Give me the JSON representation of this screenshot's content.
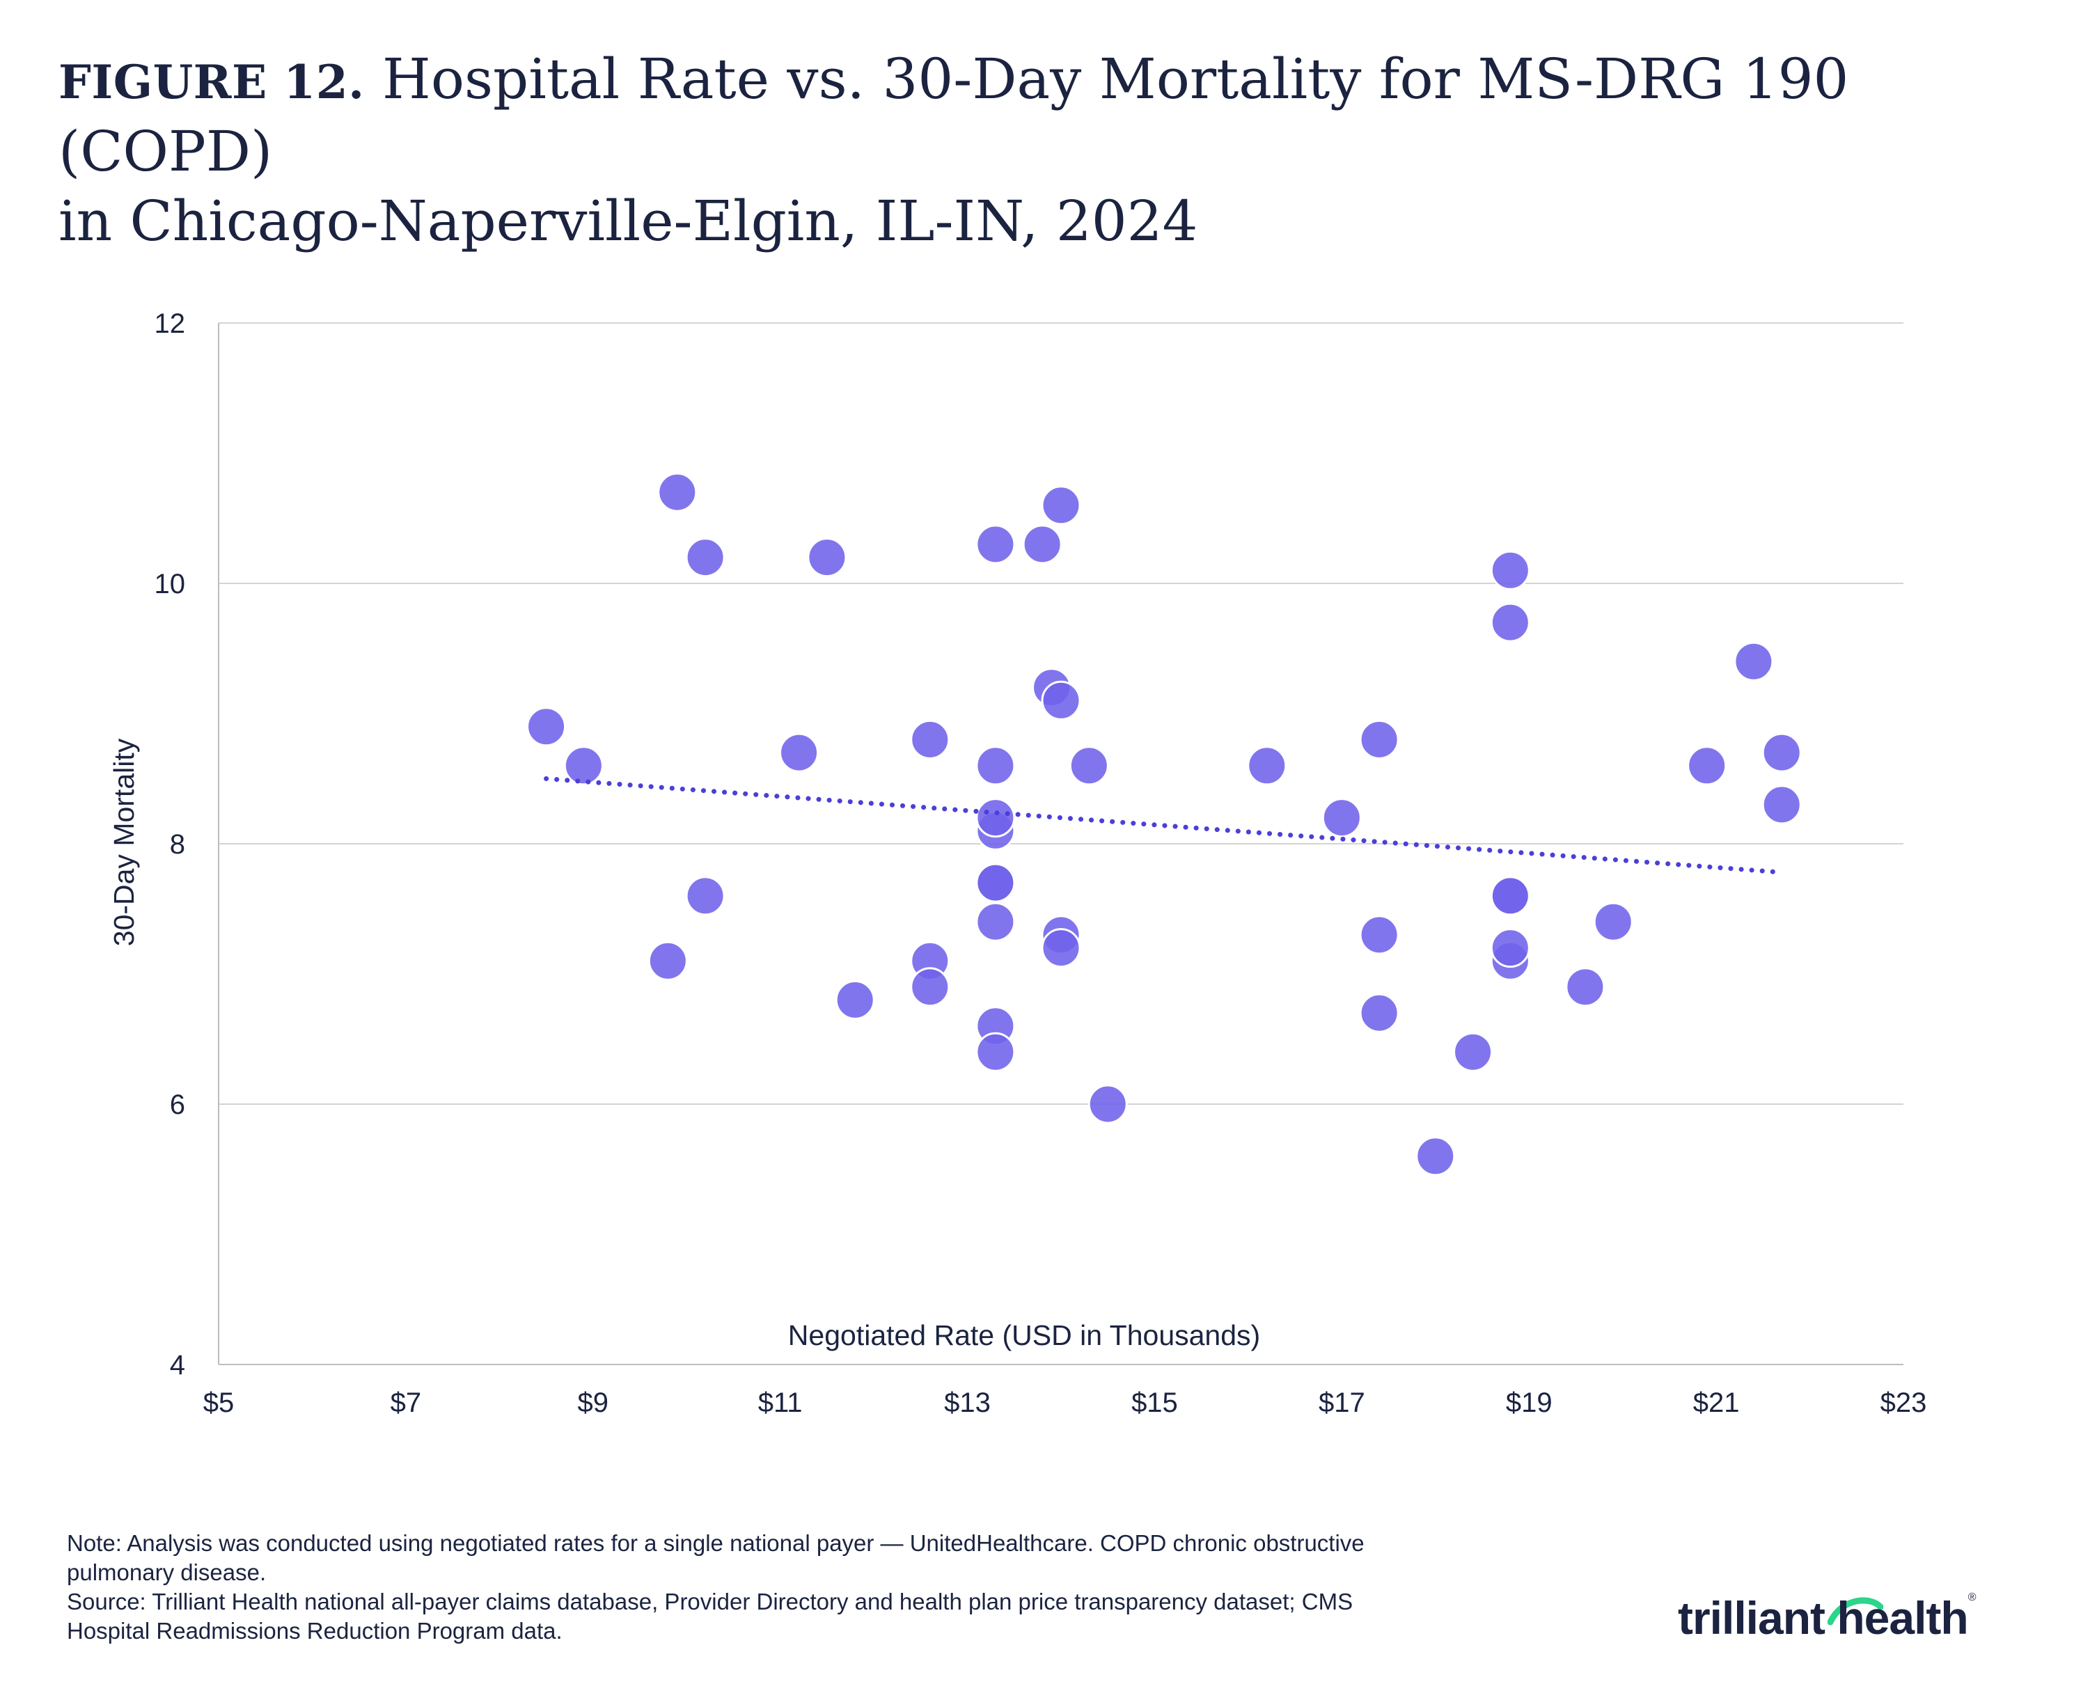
{
  "title": {
    "prefix": "FIGURE 12.",
    "line1": "Hospital Rate vs. 30-Day Mortality for MS-DRG 190 (COPD)",
    "line2": "in Chicago-Naperville-Elgin, IL-IN, 2024"
  },
  "note": {
    "line1": "Note: Analysis was conducted using negotiated rates for a single national payer — UnitedHealthcare. COPD chronic obstructive",
    "line2": "pulmonary disease.",
    "line3": "Source: Trilliant Health national all-payer claims database, Provider Directory and health plan price transparency dataset; CMS",
    "line4": "Hospital Readmissions Reduction Program data."
  },
  "logo": {
    "text": "trilliant health",
    "brand_color": "#2bd58a"
  },
  "colors": {
    "marker": "#6f62ea",
    "trendline": "#4b3fd9",
    "grid": "#d4d4d4",
    "text": "#1b2340"
  },
  "chart_data": {
    "type": "scatter",
    "title": "",
    "xlabel": "Negotiated Rate (USD in Thousands)",
    "ylabel": "30-Day Mortality",
    "xlim": [
      5,
      23
    ],
    "ylim": [
      4,
      12
    ],
    "x_ticks": [
      5,
      7,
      9,
      11,
      13,
      15,
      17,
      19,
      21,
      23
    ],
    "x_tick_labels": [
      "$5",
      "$7",
      "$9",
      "$11",
      "$13",
      "$15",
      "$17",
      "$19",
      "$21",
      "$23"
    ],
    "y_ticks": [
      4,
      6,
      8,
      10,
      12
    ],
    "y_tick_labels": [
      "4",
      "6",
      "8",
      "10",
      "12"
    ],
    "grid": "horizontal",
    "trendline": {
      "type": "linear",
      "style": "dotted",
      "x": [
        8.5,
        21.7
      ],
      "y": [
        8.5,
        7.78
      ]
    },
    "points": [
      {
        "x": 8.5,
        "y": 8.9
      },
      {
        "x": 8.9,
        "y": 8.6
      },
      {
        "x": 9.9,
        "y": 10.7
      },
      {
        "x": 10.2,
        "y": 10.2
      },
      {
        "x": 9.8,
        "y": 7.1
      },
      {
        "x": 10.2,
        "y": 7.6
      },
      {
        "x": 11.2,
        "y": 8.7
      },
      {
        "x": 11.5,
        "y": 10.2
      },
      {
        "x": 11.8,
        "y": 6.8
      },
      {
        "x": 12.6,
        "y": 8.8
      },
      {
        "x": 12.6,
        "y": 7.1
      },
      {
        "x": 12.6,
        "y": 6.9
      },
      {
        "x": 13.3,
        "y": 10.3
      },
      {
        "x": 13.3,
        "y": 8.6
      },
      {
        "x": 13.3,
        "y": 8.1
      },
      {
        "x": 13.3,
        "y": 8.2
      },
      {
        "x": 13.3,
        "y": 7.7
      },
      {
        "x": 13.3,
        "y": 7.7
      },
      {
        "x": 13.3,
        "y": 7.4
      },
      {
        "x": 13.3,
        "y": 6.6
      },
      {
        "x": 13.3,
        "y": 6.4
      },
      {
        "x": 13.8,
        "y": 10.3
      },
      {
        "x": 14.0,
        "y": 10.6
      },
      {
        "x": 13.9,
        "y": 9.2
      },
      {
        "x": 14.0,
        "y": 9.1
      },
      {
        "x": 14.3,
        "y": 8.6
      },
      {
        "x": 14.0,
        "y": 7.3
      },
      {
        "x": 14.0,
        "y": 7.2
      },
      {
        "x": 14.5,
        "y": 6.0
      },
      {
        "x": 16.2,
        "y": 8.6
      },
      {
        "x": 17.0,
        "y": 8.2
      },
      {
        "x": 17.4,
        "y": 8.8
      },
      {
        "x": 17.4,
        "y": 7.3
      },
      {
        "x": 17.4,
        "y": 6.7
      },
      {
        "x": 18.0,
        "y": 5.6
      },
      {
        "x": 18.4,
        "y": 6.4
      },
      {
        "x": 18.8,
        "y": 10.1
      },
      {
        "x": 18.8,
        "y": 9.7
      },
      {
        "x": 18.8,
        "y": 7.6
      },
      {
        "x": 18.8,
        "y": 7.6
      },
      {
        "x": 18.8,
        "y": 7.1
      },
      {
        "x": 18.8,
        "y": 7.2
      },
      {
        "x": 19.6,
        "y": 6.9
      },
      {
        "x": 19.9,
        "y": 7.4
      },
      {
        "x": 20.9,
        "y": 8.6
      },
      {
        "x": 21.4,
        "y": 9.4
      },
      {
        "x": 21.7,
        "y": 8.7
      },
      {
        "x": 21.7,
        "y": 8.3
      }
    ]
  }
}
